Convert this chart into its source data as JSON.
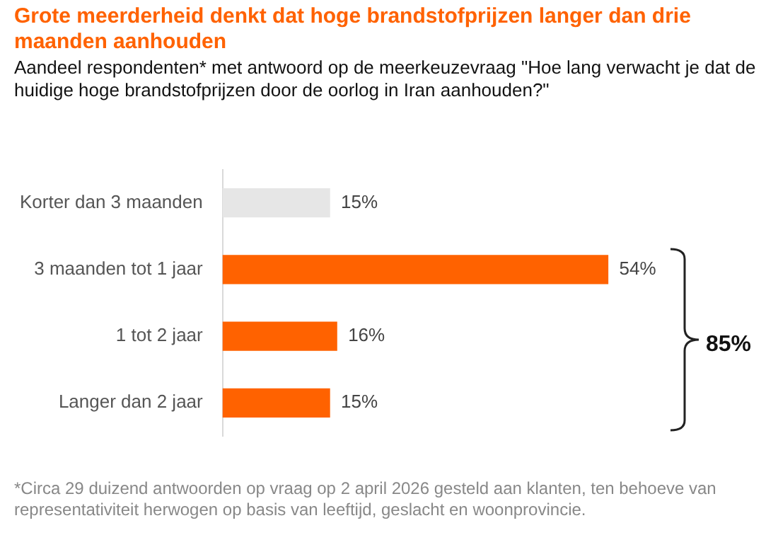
{
  "chart_data": {
    "type": "bar",
    "orientation": "horizontal",
    "title": "Grote meerderheid denkt dat hoge brandstofprijzen langer dan drie maanden aanhouden",
    "subtitle": "Aandeel respondenten* met antwoord op de meerkeuzevraag \"Hoe lang verwacht je dat de huidige hoge brandstofprijzen door de oorlog in Iran aanhouden?\"",
    "categories": [
      "Korter dan 3 maanden",
      "3 maanden tot 1 jaar",
      "1 tot 2 jaar",
      "Langer dan 2 jaar"
    ],
    "values": [
      15,
      54,
      16,
      15
    ],
    "colors": [
      "#e6e6e6",
      "#ff6200",
      "#ff6200",
      "#ff6200"
    ],
    "value_labels": [
      "15%",
      "54%",
      "16%",
      "15%"
    ],
    "tick_labels": "y",
    "grid": false,
    "legend": false,
    "annotations": [
      "85%",
      "*Circa 29 duizend antwoorden op vraag op 2 april 2026 gesteld aan klanten, ten behoeve van representativiteit herwogen op basis van leeftijd, geslacht en woonprovincie."
    ]
  }
}
